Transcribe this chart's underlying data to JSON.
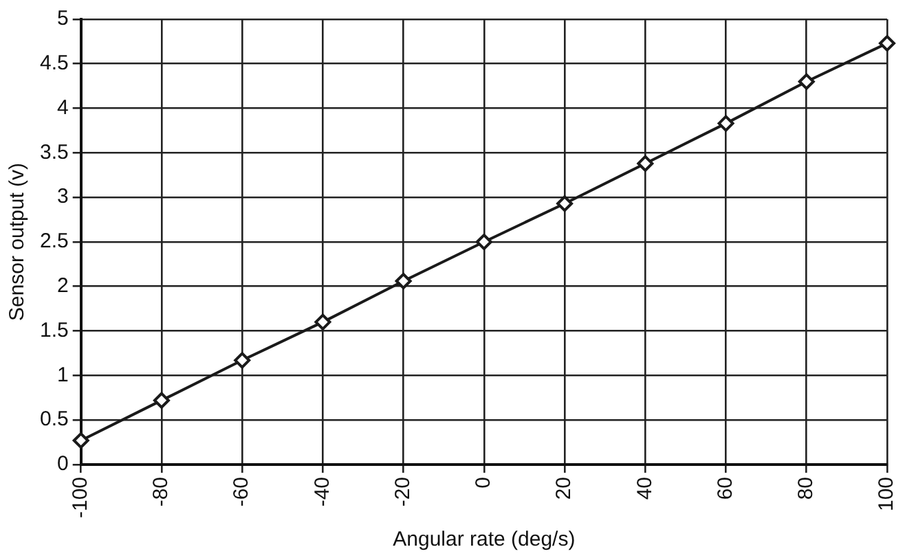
{
  "chart_data": {
    "type": "line",
    "xlabel": "Angular rate (deg/s)",
    "ylabel": "Sensor output (v)",
    "x": [
      -100,
      -80,
      -60,
      -40,
      -20,
      0,
      20,
      40,
      60,
      80,
      100
    ],
    "series": [
      {
        "color": "#1a1a1a",
        "values": [
          0.27,
          0.72,
          1.17,
          1.6,
          2.06,
          2.5,
          2.93,
          3.38,
          3.83,
          4.3,
          4.73
        ]
      }
    ],
    "xlim": [
      -100,
      100
    ],
    "xticks": [
      -100,
      -80,
      -60,
      -40,
      -20,
      0,
      20,
      40,
      60,
      80,
      100
    ],
    "ylim": [
      0,
      5
    ],
    "yticks": [
      0,
      0.5,
      1,
      1.5,
      2,
      2.5,
      3,
      3.5,
      4,
      4.5,
      5
    ],
    "grid": true,
    "legend": false,
    "marker": "diamond",
    "line_style": "solid"
  }
}
